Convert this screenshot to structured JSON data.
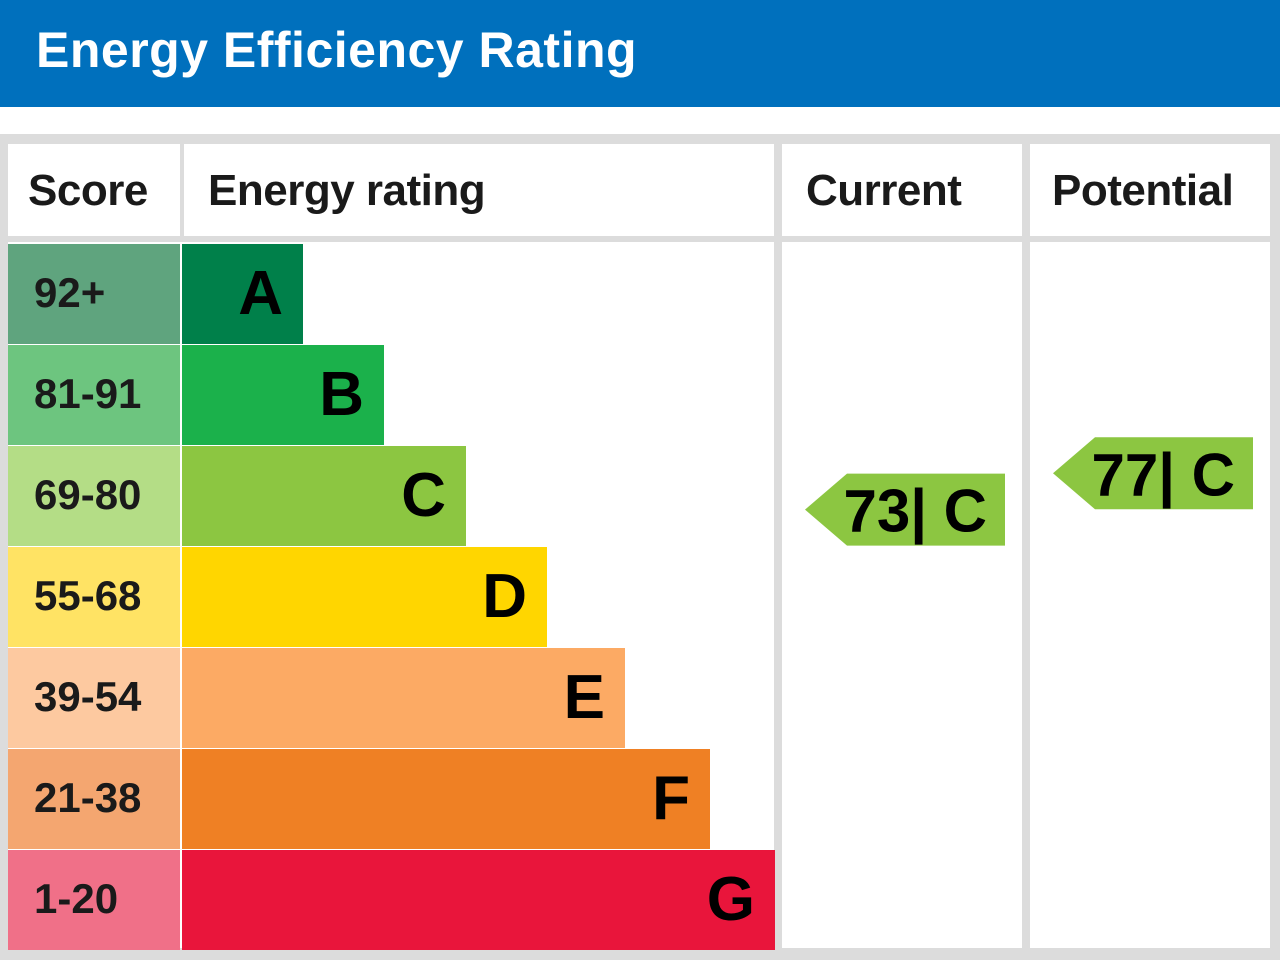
{
  "header": {
    "title": "Energy Efficiency Rating"
  },
  "columns": {
    "score": "Score",
    "rating": "Energy rating",
    "current": "Current",
    "potential": "Potential"
  },
  "colors": {
    "header_bg": "#0070bd",
    "text": "#1a1a1a",
    "border": "#dcdcdc"
  },
  "chart_data": {
    "type": "bar",
    "scale_max": 100,
    "bands": [
      {
        "score": "92+",
        "letter": "A",
        "min": 92,
        "color": "#00804a",
        "score_bg": "#5fa47e"
      },
      {
        "score": "81-91",
        "letter": "B",
        "min": 81,
        "color": "#1bb14b",
        "score_bg": "#6dc57f"
      },
      {
        "score": "69-80",
        "letter": "C",
        "min": 69,
        "color": "#8cc641",
        "score_bg": "#b4dd86"
      },
      {
        "score": "55-68",
        "letter": "D",
        "min": 55,
        "color": "#ffd600",
        "score_bg": "#ffe364"
      },
      {
        "score": "39-54",
        "letter": "E",
        "min": 39,
        "color": "#fcaa64",
        "score_bg": "#fdc9a0"
      },
      {
        "score": "21-38",
        "letter": "F",
        "min": 21,
        "color": "#ef8024",
        "score_bg": "#f4a670"
      },
      {
        "score": "1-20",
        "letter": "G",
        "min": 1,
        "color": "#e9153b",
        "score_bg": "#f07088"
      }
    ],
    "current": {
      "value": 73,
      "label": "73| C",
      "color": "#8cc641"
    },
    "potential": {
      "value": 77,
      "label": "77| C",
      "color": "#8cc641"
    }
  }
}
